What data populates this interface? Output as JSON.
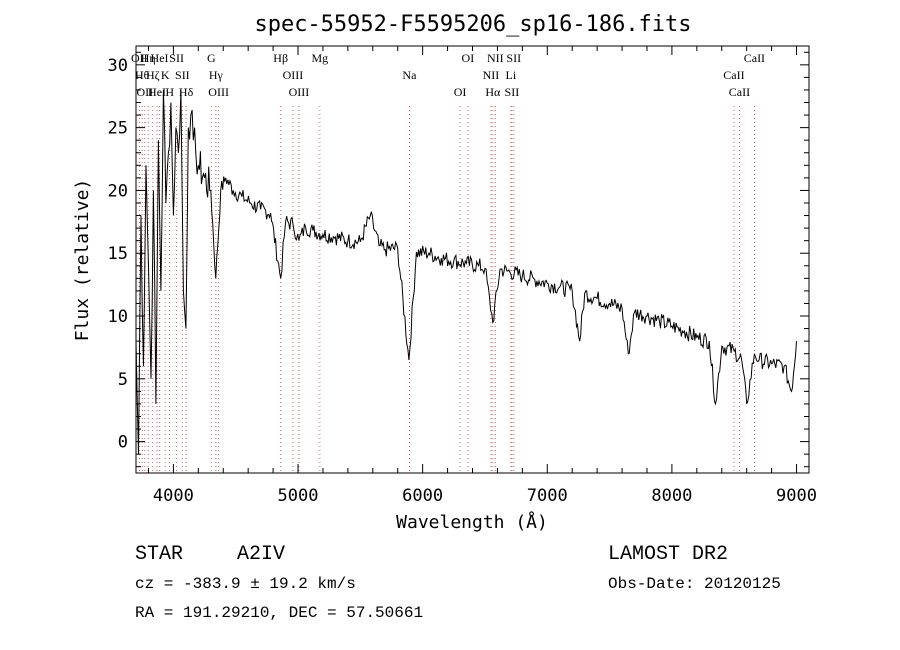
{
  "chart_data": {
    "type": "line",
    "title": "spec-55952-F5595206_sp16-186.fits",
    "xlabel": "Wavelength (Å)",
    "ylabel": "Flux (relative)",
    "xlim": [
      3700,
      9100
    ],
    "ylim": [
      -2.5,
      31.5
    ],
    "xticks": [
      4000,
      5000,
      6000,
      7000,
      8000,
      9000
    ],
    "yticks": [
      0,
      5,
      10,
      15,
      20,
      25,
      30
    ],
    "grid": false,
    "series": [
      {
        "x": [
          3700,
          3720,
          3740,
          3760,
          3780,
          3800,
          3820,
          3840,
          3860,
          3880,
          3900,
          3920,
          3940,
          3960,
          3980,
          4000,
          4020,
          4040,
          4060,
          4080,
          4100,
          4120,
          4140,
          4160,
          4180,
          4200,
          4250,
          4300,
          4340,
          4380,
          4420,
          4480,
          4550,
          4620,
          4700,
          4780,
          4861,
          4900,
          4960,
          5007,
          5060,
          5120,
          5200,
          5300,
          5400,
          5500,
          5580,
          5650,
          5700,
          5800,
          5890,
          5950,
          6050,
          6150,
          6250,
          6350,
          6450,
          6500,
          6563,
          6620,
          6700,
          6800,
          6900,
          7000,
          7100,
          7200,
          7260,
          7300,
          7400,
          7500,
          7600,
          7650,
          7700,
          7800,
          7900,
          8000,
          8100,
          8200,
          8300,
          8350,
          8400,
          8500,
          8560,
          8600,
          8662,
          8700,
          8800,
          8900,
          8960,
          9000
        ],
        "y": [
          8,
          -1,
          18,
          6,
          22,
          14,
          5,
          20,
          3,
          24,
          12,
          28,
          19,
          23,
          27,
          18,
          25,
          23,
          28,
          12,
          9,
          25,
          26,
          24,
          23,
          22,
          21,
          20,
          13,
          20,
          21,
          20,
          19.5,
          19,
          18.5,
          18.2,
          13,
          17.5,
          17.3,
          16,
          17.1,
          16.8,
          16.5,
          16.3,
          16,
          15.9,
          18,
          15.6,
          15.3,
          15.4,
          6.5,
          15.1,
          15,
          14.6,
          14.4,
          14.2,
          14,
          13.8,
          9.5,
          13.7,
          13.5,
          13.2,
          12.9,
          12.6,
          12.3,
          12,
          8,
          11.8,
          11.4,
          11,
          10.6,
          7,
          10.3,
          10,
          9.6,
          9.2,
          8.8,
          8.3,
          8,
          3,
          7.6,
          7.2,
          6.5,
          3,
          7,
          6.5,
          6.2,
          6,
          4,
          8
        ]
      }
    ],
    "annotations": [
      {
        "wavelength": 3727,
        "label": "OII"
      },
      {
        "wavelength": 3750,
        "label": "Hθ"
      },
      {
        "wavelength": 3771,
        "label": "OII"
      },
      {
        "wavelength": 3798,
        "label": "Hη"
      },
      {
        "wavelength": 3835,
        "label": "Hζ"
      },
      {
        "wavelength": 3869,
        "label": "HeI"
      },
      {
        "wavelength": 3889,
        "label": "HeI"
      },
      {
        "wavelength": 3934,
        "label": "K"
      },
      {
        "wavelength": 3970,
        "label": "H"
      },
      {
        "wavelength": 4026,
        "label": "SII"
      },
      {
        "wavelength": 4072,
        "label": "SII"
      },
      {
        "wavelength": 4102,
        "label": "Hδ"
      },
      {
        "wavelength": 4304,
        "label": "G"
      },
      {
        "wavelength": 4341,
        "label": "Hγ"
      },
      {
        "wavelength": 4363,
        "label": "OIII"
      },
      {
        "wavelength": 4861,
        "label": "Hβ"
      },
      {
        "wavelength": 4959,
        "label": "OIII"
      },
      {
        "wavelength": 5007,
        "label": "OIII"
      },
      {
        "wavelength": 5175,
        "label": "Mg"
      },
      {
        "wavelength": 5894,
        "label": "Na"
      },
      {
        "wavelength": 6300,
        "label": "OI"
      },
      {
        "wavelength": 6363,
        "label": "OI"
      },
      {
        "wavelength": 6548,
        "label": "NII"
      },
      {
        "wavelength": 6563,
        "label": "Hα"
      },
      {
        "wavelength": 6583,
        "label": "NII"
      },
      {
        "wavelength": 6708,
        "label": "Li"
      },
      {
        "wavelength": 6716,
        "label": "SII"
      },
      {
        "wavelength": 6731,
        "label": "SII"
      },
      {
        "wavelength": 8498,
        "label": "CaII"
      },
      {
        "wavelength": 8542,
        "label": "CaII"
      },
      {
        "wavelength": 8662,
        "label": "CaII"
      }
    ]
  },
  "info": {
    "object_class": "STAR",
    "subclass": "A2IV",
    "survey": "LAMOST DR2",
    "redshift": "cz = -383.9 ± 19.2 km/s",
    "obs_date": "Obs-Date: 20120125",
    "coords": "RA = 191.29210, DEC =  57.50661"
  }
}
